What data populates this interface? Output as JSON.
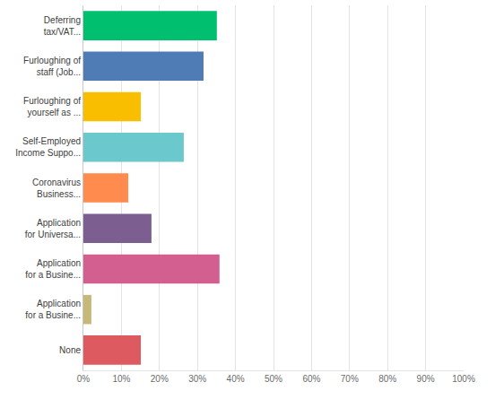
{
  "chart_data": {
    "type": "bar",
    "orientation": "horizontal",
    "categories": [
      "Deferring\ntax/VAT...",
      "Furloughing of\nstaff (Job...",
      "Furloughing of\nyourself as ...",
      "Self-Employed\nIncome Suppo...",
      "Coronavirus\nBusiness...",
      "Application\nfor Universa...",
      "Application\nfor a Busine...",
      "Application\nfor a Busine...",
      "None"
    ],
    "values": [
      35.1,
      31.6,
      15.1,
      26.4,
      11.8,
      17.9,
      35.8,
      2.1,
      15.1
    ],
    "colors": [
      "#00bf6f",
      "#507cb6",
      "#f9be00",
      "#6bc8cd",
      "#ff8b4f",
      "#7d5e90",
      "#d25f90",
      "#c6b879",
      "#dd5a60"
    ],
    "xlim": [
      0,
      100
    ],
    "xticks": [
      {
        "value": 0,
        "label": "0%"
      },
      {
        "value": 10,
        "label": "10%"
      },
      {
        "value": 20,
        "label": "20%"
      },
      {
        "value": 30,
        "label": "30%"
      },
      {
        "value": 40,
        "label": "40%"
      },
      {
        "value": 50,
        "label": "50%"
      },
      {
        "value": 60,
        "label": "60%"
      },
      {
        "value": 70,
        "label": "70%"
      },
      {
        "value": 80,
        "label": "80%"
      },
      {
        "value": 90,
        "label": "90%"
      },
      {
        "value": 100,
        "label": "100%"
      }
    ],
    "grid": true
  }
}
